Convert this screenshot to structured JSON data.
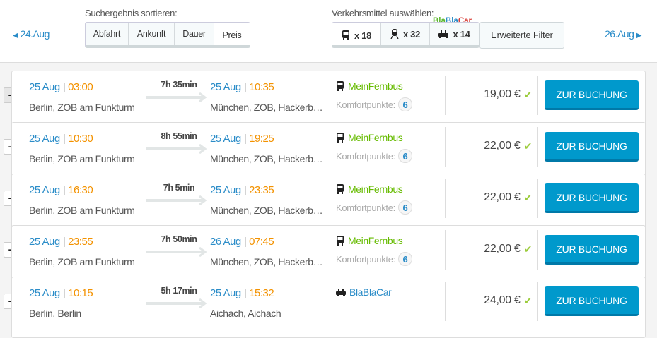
{
  "nav": {
    "prev_date": "24.Aug",
    "next_date": "26.Aug"
  },
  "sort": {
    "label": "Suchergebnis sortieren:",
    "options": [
      "Abfahrt",
      "Ankunft",
      "Dauer",
      "Preis"
    ],
    "active": "Preis"
  },
  "transport": {
    "label": "Verkehrsmittel auswählen:",
    "options": [
      {
        "icon": "bus-icon",
        "count": "x 18"
      },
      {
        "icon": "train-icon",
        "count": "x 32"
      },
      {
        "icon": "car-icon",
        "count": "x 14"
      }
    ],
    "active": "bus",
    "blablacar_logo": "BlaBlaCar",
    "extended_filter": "Erweiterte Filter"
  },
  "colors": {
    "accent": "#0099cc",
    "link": "#2a8cc8",
    "time": "#f39200",
    "operator_green": "#66bb00"
  },
  "results": [
    {
      "dep_date": "25 Aug",
      "dep_time": "03:00",
      "dep_station": "Berlin, ZOB am Funkturm",
      "duration": "7h 35min",
      "arr_date": "25 Aug",
      "arr_time": "10:35",
      "arr_station": "München, ZOB, Hackerb…",
      "operator": "MeinFernbus",
      "operator_icon": "bus-icon",
      "comfort_label": "Komfortpunkte:",
      "comfort": "6",
      "price": "19,00 €",
      "button": "ZUR BUCHUNG"
    },
    {
      "dep_date": "25 Aug",
      "dep_time": "10:30",
      "dep_station": "Berlin, ZOB am Funkturm",
      "duration": "8h 55min",
      "arr_date": "25 Aug",
      "arr_time": "19:25",
      "arr_station": "München, ZOB, Hackerb…",
      "operator": "MeinFernbus",
      "operator_icon": "bus-icon",
      "comfort_label": "Komfortpunkte:",
      "comfort": "6",
      "price": "22,00 €",
      "button": "ZUR BUCHUNG"
    },
    {
      "dep_date": "25 Aug",
      "dep_time": "16:30",
      "dep_station": "Berlin, ZOB am Funkturm",
      "duration": "7h 5min",
      "arr_date": "25 Aug",
      "arr_time": "23:35",
      "arr_station": "München, ZOB, Hackerb…",
      "operator": "MeinFernbus",
      "operator_icon": "bus-icon",
      "comfort_label": "Komfortpunkte:",
      "comfort": "6",
      "price": "22,00 €",
      "button": "ZUR BUCHUNG"
    },
    {
      "dep_date": "25 Aug",
      "dep_time": "23:55",
      "dep_station": "Berlin, ZOB am Funkturm",
      "duration": "7h 50min",
      "arr_date": "26 Aug",
      "arr_time": "07:45",
      "arr_station": "München, ZOB, Hackerb…",
      "operator": "MeinFernbus",
      "operator_icon": "bus-icon",
      "comfort_label": "Komfortpunkte:",
      "comfort": "6",
      "price": "22,00 €",
      "button": "ZUR BUCHUNG"
    },
    {
      "dep_date": "25 Aug",
      "dep_time": "10:15",
      "dep_station": "Berlin, Berlin",
      "duration": "5h 17min",
      "arr_date": "25 Aug",
      "arr_time": "15:32",
      "arr_station": "Aichach, Aichach",
      "operator": "BlaBlaCar",
      "operator_icon": "car-icon",
      "price": "24,00 €",
      "button": "ZUR BUCHUNG"
    }
  ]
}
